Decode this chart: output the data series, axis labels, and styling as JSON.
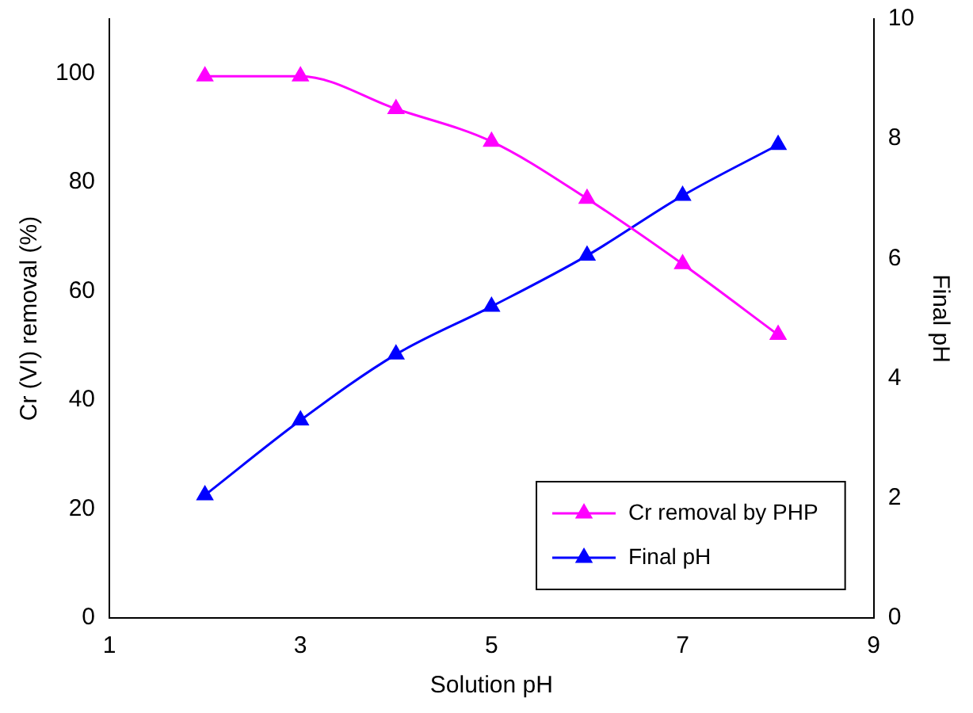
{
  "chart_data": {
    "type": "line",
    "xlabel": "Solution pH",
    "ylabel": "Cr (VI) removal (%)",
    "y2label": "Final pH",
    "x": [
      2,
      3,
      4,
      5,
      6,
      7,
      8
    ],
    "series": [
      {
        "name": "Cr removal by PHP",
        "color": "#ff00ff",
        "values": [
          99.5,
          99.5,
          93.5,
          87.5,
          77,
          65,
          52
        ]
      },
      {
        "name": "Final pH",
        "color": "#0000ff",
        "axis": "y2",
        "values": [
          2.05,
          3.3,
          4.4,
          5.2,
          6.05,
          7.05,
          7.9
        ]
      }
    ],
    "xlim": [
      1,
      9
    ],
    "xticks": [
      1,
      3,
      5,
      7,
      9
    ],
    "ylim": [
      0,
      110
    ],
    "yticks": [
      0,
      20,
      40,
      60,
      80,
      100
    ],
    "y2lim": [
      0,
      10
    ],
    "y2ticks": [
      0,
      2,
      4,
      6,
      8,
      10
    ],
    "marker": "triangle",
    "legend": "bottom right",
    "grid": false
  }
}
